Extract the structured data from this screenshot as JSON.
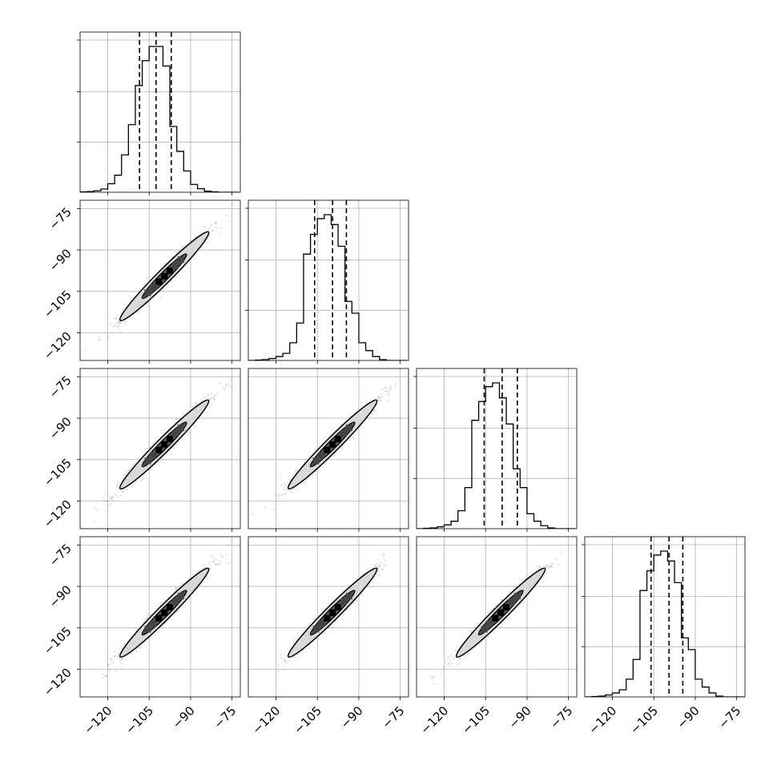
{
  "chart_data": {
    "type": "corner",
    "parameters": 4,
    "axis_range": [
      -130,
      -72
    ],
    "x_ticks": [
      -120,
      -105,
      -90,
      -75
    ],
    "x_tick_labels": [
      "−120",
      "−105",
      "−90",
      "−75"
    ],
    "y_ticks": [
      -75,
      -90,
      -105,
      -120
    ],
    "y_tick_labels": [
      "−75",
      "−90",
      "−105",
      "−120"
    ],
    "grid": true,
    "diagonal_histograms": [
      {
        "bin_edges": [
          -130,
          -127.5,
          -125,
          -122.5,
          -120,
          -117.5,
          -115,
          -112.5,
          -110,
          -107.5,
          -105,
          -102.5,
          -100,
          -97.5,
          -95,
          -92.5,
          -90,
          -87.5,
          -85,
          -82.5,
          -80,
          -77.5,
          -75,
          -72.5
        ],
        "counts": [
          1,
          2,
          4,
          9,
          24,
          48,
          105,
          190,
          300,
          370,
          410,
          410,
          355,
          185,
          115,
          60,
          22,
          10,
          3,
          1,
          0,
          0,
          0
        ],
        "quantiles": [
          -108.5,
          -102.5,
          -97
        ]
      },
      {
        "bin_edges": [
          -130,
          -127.5,
          -125,
          -122.5,
          -120,
          -117.5,
          -115,
          -112.5,
          -110,
          -107.5,
          -105,
          -102.5,
          -100,
          -97.5,
          -95,
          -92.5,
          -90,
          -87.5,
          -85,
          -82.5,
          -80,
          -77.5,
          -75,
          -72.5
        ],
        "counts": [
          0,
          1,
          2,
          5,
          10,
          18,
          45,
          95,
          270,
          320,
          360,
          370,
          345,
          290,
          150,
          120,
          45,
          25,
          10,
          2,
          0,
          0,
          0
        ],
        "quantiles": [
          -106,
          -99.5,
          -94.5
        ]
      },
      {
        "bin_edges": [
          -130,
          -127.5,
          -125,
          -122.5,
          -120,
          -117.5,
          -115,
          -112.5,
          -110,
          -107.5,
          -105,
          -102.5,
          -100,
          -97.5,
          -95,
          -92.5,
          -90,
          -87.5,
          -85,
          -82.5,
          -80,
          -77.5,
          -75,
          -72.5
        ],
        "counts": [
          0,
          1,
          2,
          5,
          10,
          20,
          48,
          110,
          290,
          340,
          380,
          390,
          350,
          280,
          160,
          110,
          40,
          20,
          8,
          2,
          0,
          0,
          0
        ],
        "quantiles": [
          -105.5,
          -99,
          -93.5
        ]
      },
      {
        "bin_edges": [
          -130,
          -127.5,
          -125,
          -122.5,
          -120,
          -117.5,
          -115,
          -112.5,
          -110,
          -107.5,
          -105,
          -102.5,
          -100,
          -97.5,
          -95,
          -92.5,
          -90,
          -87.5,
          -85,
          -82.5,
          -80,
          -77.5,
          -75,
          -72.5
        ],
        "counts": [
          0,
          1,
          2,
          5,
          10,
          18,
          45,
          95,
          270,
          320,
          360,
          370,
          345,
          290,
          150,
          120,
          45,
          25,
          10,
          2,
          0,
          0,
          0
        ],
        "quantiles": [
          -106,
          -99.5,
          -94.5
        ]
      }
    ],
    "pair_scatter": {
      "center": -99.5,
      "spread_along": 8,
      "spread_across": 1.2,
      "contour_levels": [
        "outer",
        "inner"
      ],
      "outer_half_length": 16,
      "outer_half_width": 2.5,
      "inner_half_length": 8,
      "inner_half_width": 1.5
    }
  }
}
